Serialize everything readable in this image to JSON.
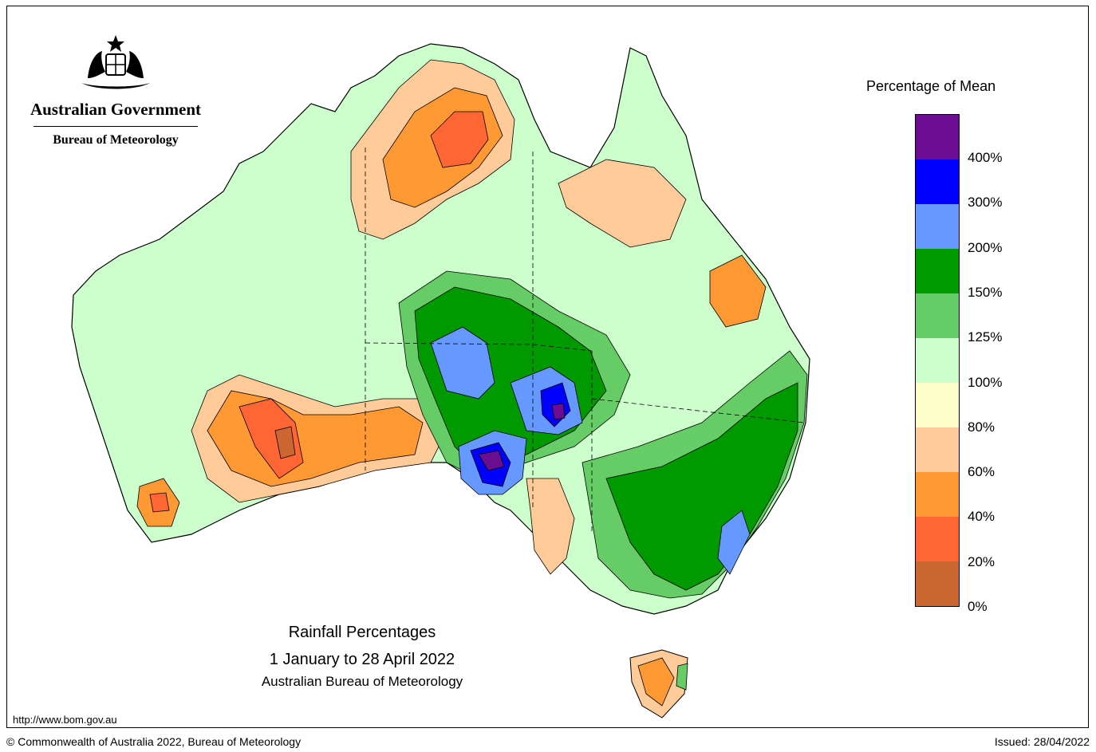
{
  "header": {
    "government": "Australian Government",
    "bureau": "Bureau of Meteorology"
  },
  "legend": {
    "title": "Percentage of Mean",
    "bands": [
      {
        "color": "#6a0d91"
      },
      {
        "color": "#0000ff"
      },
      {
        "color": "#6699ff"
      },
      {
        "color": "#009900"
      },
      {
        "color": "#66cc66"
      },
      {
        "color": "#ccffcc"
      },
      {
        "color": "#ffffcc"
      },
      {
        "color": "#ffcc99"
      },
      {
        "color": "#ff9933"
      },
      {
        "color": "#ff6633"
      },
      {
        "color": "#cc6633"
      }
    ],
    "labels": [
      "400%",
      "300%",
      "200%",
      "150%",
      "125%",
      "100%",
      "80%",
      "60%",
      "40%",
      "20%",
      "0%"
    ]
  },
  "map": {
    "title": "Rainfall Percentages",
    "period": "1 January to 28 April 2022",
    "agency": "Australian Bureau of Meteorology"
  },
  "footer": {
    "url": "http://www.bom.gov.au",
    "copyright": "© Commonwealth of Australia 2022, Bureau of Meteorology",
    "issued": "Issued: 28/04/2022"
  }
}
